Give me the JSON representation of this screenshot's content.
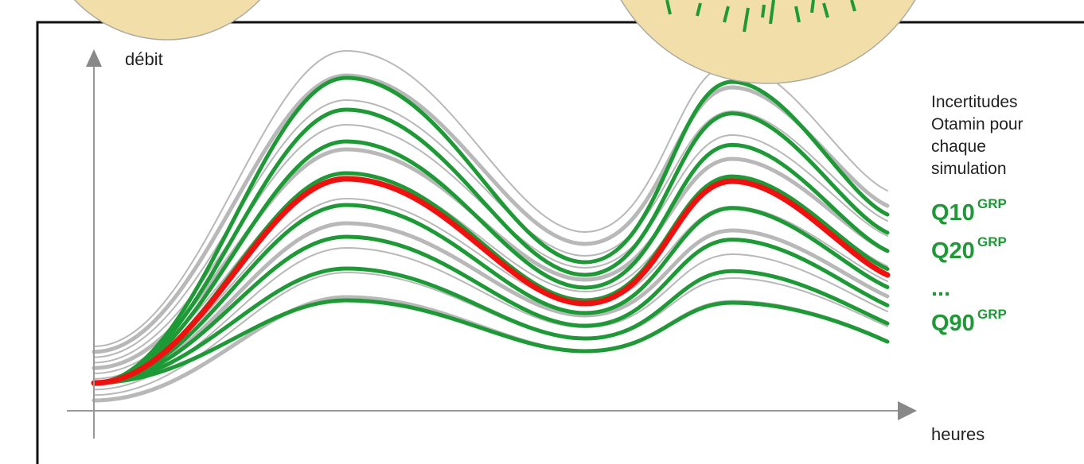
{
  "axes": {
    "y_label": "débit",
    "x_label": "heures"
  },
  "legend": {
    "lines": [
      "Incertitudes",
      "Otamin pour",
      "chaque",
      "simulation"
    ],
    "quantiles": [
      {
        "label": "Q10",
        "superscript": "GRP"
      },
      {
        "label": "Q20",
        "superscript": "GRP"
      }
    ],
    "ellipsis": "...",
    "last_quantile": {
      "label": "Q90",
      "superscript": "GRP"
    }
  }
}
